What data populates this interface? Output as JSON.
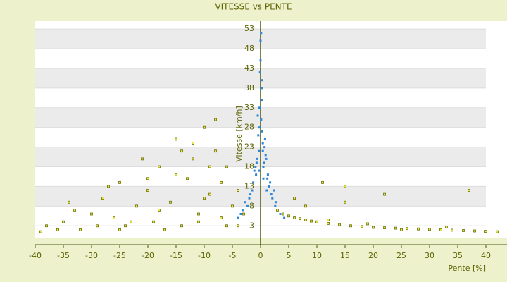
{
  "chart_data": {
    "type": "scatter",
    "title": "VITESSE vs PENTE",
    "x_label": "Pente [%]",
    "y_label": "Vitesse [km/h]",
    "xlim": [
      -40,
      43
    ],
    "xticks": [
      -40,
      -35,
      -30,
      -25,
      -20,
      -15,
      -10,
      -5,
      0,
      5,
      10,
      15,
      20,
      25,
      30,
      35,
      40
    ],
    "ylim": [
      0,
      55
    ],
    "yticks": [
      3,
      8,
      13,
      18,
      23,
      28,
      33,
      38,
      43,
      48,
      53
    ],
    "grid": true,
    "series": [
      {
        "color": "#6b7000",
        "x": [
          -38,
          -35,
          -32,
          -30,
          -28,
          -26,
          -25,
          -24,
          -22,
          -20,
          -19,
          -18,
          -16,
          -15,
          -14,
          -13,
          -12,
          -11,
          -10,
          -9,
          -8,
          -7,
          -6,
          -5,
          -4,
          -36,
          -33,
          -29,
          -27,
          -23,
          -21,
          -17,
          -15,
          -12,
          -10,
          -8,
          -6,
          -3,
          -39,
          -34,
          -25,
          -20,
          -18,
          -14,
          -11,
          -9,
          -7,
          -4,
          3,
          4,
          5,
          6,
          7,
          8,
          9,
          10,
          12,
          14,
          16,
          18,
          20,
          22,
          24,
          26,
          28,
          30,
          32,
          34,
          36,
          38,
          40,
          42,
          6,
          11,
          15,
          19,
          25,
          33,
          15,
          37,
          22,
          12,
          8
        ],
        "values": [
          3,
          4,
          2,
          6,
          10,
          5,
          14,
          3,
          8,
          12,
          4,
          18,
          9,
          25,
          3,
          15,
          20,
          6,
          28,
          11,
          22,
          5,
          18,
          8,
          12,
          2,
          7,
          3,
          13,
          4,
          20,
          2,
          16,
          24,
          10,
          30,
          3,
          6,
          1.5,
          9,
          2,
          15,
          7,
          22,
          4,
          18,
          14,
          3,
          7,
          6,
          5.5,
          5,
          4.8,
          4.5,
          4.2,
          4,
          3.6,
          3.3,
          3,
          2.8,
          2.6,
          2.5,
          2.4,
          2.3,
          2.2,
          2.1,
          2,
          1.9,
          1.8,
          1.7,
          1.6,
          1.5,
          10,
          14,
          9,
          3.5,
          2,
          2.7,
          13,
          12,
          11,
          4.5,
          8
        ]
      },
      {
        "color": "#2f86d6",
        "x": [
          0.5,
          -0.3,
          1.2,
          -1.5,
          0.1,
          2.1,
          -2.3,
          0.8,
          -0.6,
          1.7,
          -1.1,
          0.3,
          2.8,
          -3.2,
          0,
          1.0,
          -0.8,
          0.4,
          -0.2,
          1.5,
          -1.8,
          3.5,
          -4,
          0.6,
          -0.4,
          2.4,
          -2.7,
          0.9,
          0.2,
          -0.1,
          1.3,
          -1.3,
          4.2,
          -0.9,
          0.7,
          0.1,
          -0.5,
          1.9,
          -2,
          0.3,
          -0.2,
          0,
          0.5,
          -0.7,
          1.1,
          2.6,
          -3.5,
          0.4,
          -0.3,
          0.2
        ],
        "values": [
          18,
          22,
          15,
          12,
          30,
          10,
          8,
          25,
          20,
          14,
          17,
          35,
          9,
          7,
          45,
          20,
          16,
          24,
          28,
          13,
          11,
          6,
          5,
          19,
          26,
          12,
          9,
          21,
          38,
          42,
          16,
          14,
          5,
          18,
          23,
          52,
          31,
          11,
          10,
          27,
          33,
          50,
          15,
          19,
          12,
          8,
          6,
          22,
          17,
          40
        ]
      }
    ]
  }
}
